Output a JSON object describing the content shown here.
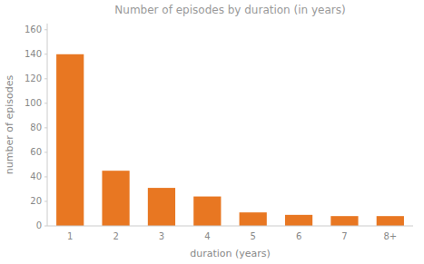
{
  "chart_data": {
    "type": "bar",
    "title": "Number of episodes by duration (in years)",
    "xlabel": "duration (years)",
    "ylabel": "number of episodes",
    "categories": [
      "1",
      "2",
      "3",
      "4",
      "5",
      "6",
      "7",
      "8+"
    ],
    "values": [
      140,
      45,
      31,
      24,
      11,
      9,
      8,
      8
    ],
    "color": "#E87722",
    "ylim": [
      0,
      165
    ],
    "yticks": [
      0,
      20,
      40,
      60,
      80,
      100,
      120,
      140,
      160
    ],
    "grid": false
  }
}
